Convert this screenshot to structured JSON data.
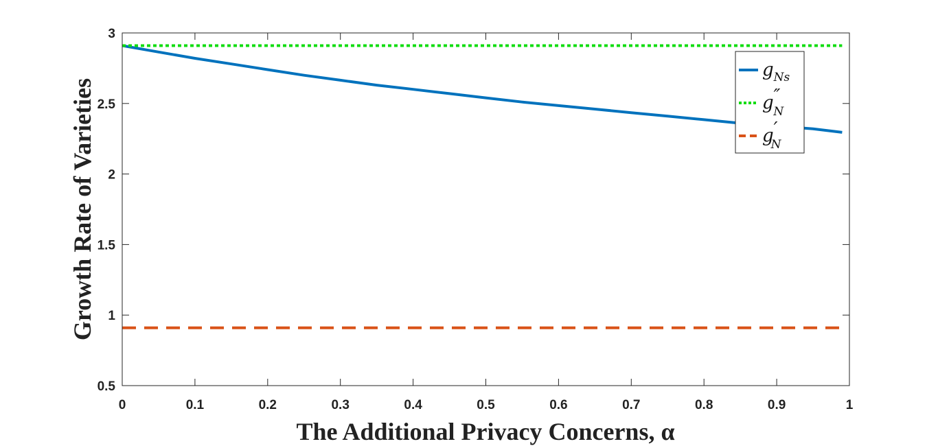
{
  "chart_data": {
    "type": "line",
    "title": "",
    "xlabel": "The Additional Privacy Concerns, α",
    "ylabel": "Growth Rate of Varieties",
    "xlim": [
      0,
      1
    ],
    "ylim": [
      0.5,
      3
    ],
    "xticks": [
      0,
      0.1,
      0.2,
      0.3,
      0.4,
      0.5,
      0.6,
      0.7,
      0.8,
      0.9,
      1
    ],
    "xtick_labels": [
      "0",
      "0.1",
      "0.2",
      "0.3",
      "0.4",
      "0.5",
      "0.6",
      "0.7",
      "0.8",
      "0.9",
      "1"
    ],
    "yticks": [
      0.5,
      1,
      1.5,
      2,
      2.5,
      3
    ],
    "ytick_labels": [
      "0.5",
      "1",
      "1.5",
      "2",
      "2.5",
      "3"
    ],
    "grid": false,
    "legend_position": "top-right",
    "series": [
      {
        "name": "g_Ns",
        "legend_base": "g",
        "legend_sub": "Ns",
        "legend_prime": "",
        "color": "#0072BD",
        "style": "solid",
        "x": [
          0,
          0.05,
          0.1,
          0.15,
          0.2,
          0.25,
          0.3,
          0.35,
          0.4,
          0.45,
          0.5,
          0.55,
          0.6,
          0.65,
          0.7,
          0.75,
          0.8,
          0.85,
          0.9,
          0.95,
          0.99
        ],
        "y": [
          2.91,
          2.865,
          2.82,
          2.78,
          2.74,
          2.7,
          2.665,
          2.63,
          2.6,
          2.57,
          2.54,
          2.51,
          2.485,
          2.46,
          2.435,
          2.41,
          2.385,
          2.36,
          2.34,
          2.32,
          2.295
        ]
      },
      {
        "name": "g''_N",
        "legend_base": "g",
        "legend_sub": "N",
        "legend_prime": "″",
        "color": "#11DD11",
        "style": "dotted",
        "x": [
          0,
          0.99
        ],
        "y": [
          2.91,
          2.91
        ]
      },
      {
        "name": "g'_N",
        "legend_base": "g",
        "legend_sub": "N",
        "legend_prime": "′",
        "color": "#D95319",
        "style": "dashed",
        "x": [
          0,
          0.99
        ],
        "y": [
          0.91,
          0.91
        ]
      }
    ]
  }
}
